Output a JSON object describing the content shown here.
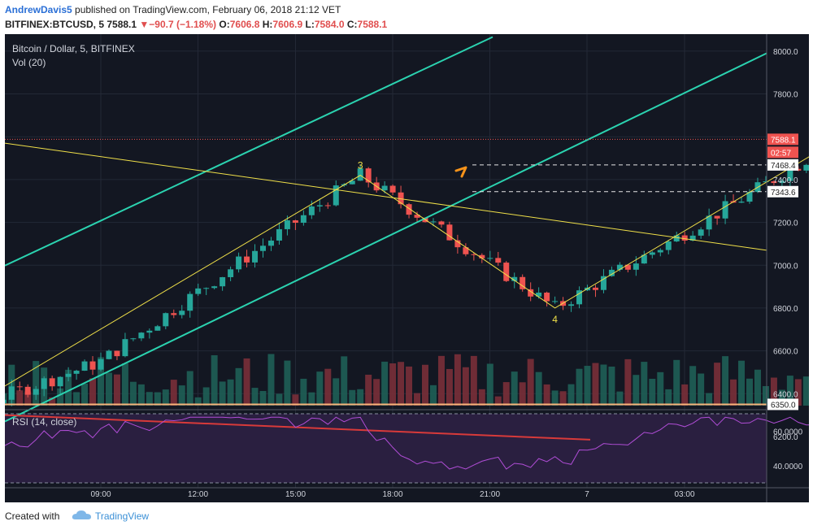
{
  "header": {
    "author": "AndrewDavis5",
    "published": " published on TradingView.com, February 06, 2018 21:12 VET",
    "symbol": "BITFINEX:BTCUSD, 5",
    "last": "7588.1",
    "change": "−90.7 (−1.18%)",
    "o_label": "O:",
    "o": "7606.8",
    "h_label": "H:",
    "h": "7606.9",
    "l_label": "L:",
    "l": "7584.0",
    "c_label": "C:",
    "c": "7588.1"
  },
  "footer": {
    "created_with": "Created with",
    "brand": "TradingView"
  },
  "colors": {
    "background": "#131722",
    "channel": "#2bd3b0",
    "pattern": "#f0e049",
    "up": "#26a69a",
    "down": "#ef5350",
    "rsi": "#b04dd6",
    "support": "#f7b37a"
  },
  "chart_data": {
    "type": "candlestick",
    "title": "Bitcoin / Dollar, 5, BITFINEX",
    "indicator_label": "Vol (20)",
    "rsi_label": "RSI (14, close)",
    "x_ticks": [
      "09:00",
      "12:00",
      "15:00",
      "18:00",
      "21:00",
      "7",
      "03:00"
    ],
    "y_ticks": [
      8000,
      7800,
      7600,
      7400,
      7200,
      7000,
      6800,
      6600,
      6400,
      6200
    ],
    "y_tick_labels": [
      "8000.0",
      "7800.0",
      "7600.0",
      "7400.0",
      "7200.0",
      "7000.0",
      "6800.0",
      "6600.0",
      "6400.0",
      "6200.0"
    ],
    "ylim": [
      6185,
      8055
    ],
    "rsi_ticks": [
      60,
      40
    ],
    "rsi_tick_labels": [
      "60.0000",
      "40.0000"
    ],
    "rsi_range": [
      30,
      70
    ],
    "price_tags": [
      {
        "value": 7588.1,
        "label": "7588.1",
        "bg": "#ef5350",
        "fg": "#ffffff"
      },
      {
        "value": 7468.4,
        "label": "7468.4",
        "bg": "#ffffff",
        "fg": "#222222"
      },
      {
        "value": 7343.6,
        "label": "7343.6",
        "bg": "#ffffff",
        "fg": "#222222"
      },
      {
        "value": 6350.0,
        "label": "6350.0",
        "bg": "#ffffff",
        "fg": "#222222"
      }
    ],
    "countdown": "02:57",
    "wave_points": [
      {
        "time": "06:00",
        "price": 6840,
        "label": ""
      },
      {
        "time": "07:35",
        "price": 6320,
        "label": "2"
      },
      {
        "time": "11:40",
        "price": 7420,
        "label": "3"
      },
      {
        "time": "13:40",
        "price": 6800,
        "label": "4"
      },
      {
        "time": "17:35",
        "price": 7860,
        "label": "5"
      },
      {
        "time": "18:40",
        "price": 7440,
        "label": "A"
      },
      {
        "time": "19:40",
        "price": 7840,
        "label": "B"
      },
      {
        "time": "20:50",
        "price": 7343,
        "label": "C"
      }
    ],
    "anchor_points": [
      {
        "time": "06:00",
        "price": 6840
      },
      {
        "time": "07:35",
        "price": 6320
      },
      {
        "time": "09:00",
        "price": 6550
      },
      {
        "time": "11:40",
        "price": 7420
      },
      {
        "time": "13:40",
        "price": 6800
      },
      {
        "time": "15:00",
        "price": 7150
      },
      {
        "time": "17:35",
        "price": 7860
      },
      {
        "time": "18:40",
        "price": 7440
      },
      {
        "time": "19:40",
        "price": 7840
      },
      {
        "time": "20:50",
        "price": 7480
      },
      {
        "time": "21:40",
        "price": 7680
      },
      {
        "time": "22:00",
        "price": 7588
      }
    ],
    "horizontal_lines": [
      7468.4,
      7343.6,
      6350.0
    ]
  }
}
